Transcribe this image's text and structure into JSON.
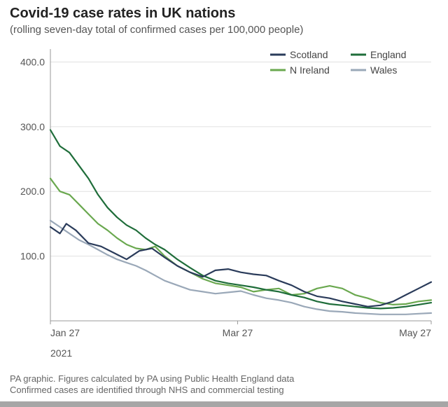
{
  "title": "Covid-19 case rates in UK nations",
  "subtitle": "(rolling seven-day total of confirmed cases per 100,000 people)",
  "year_label": "2021",
  "footnote_line1": "PA graphic. Figures calculated by PA using Public Health England data",
  "footnote_line2": "Confirmed cases are identified through NHS and commercial testing",
  "chart": {
    "type": "line",
    "background_color": "#ffffff",
    "plot_border_color": "#bfbfbf",
    "grid_color": "#e0e0e0",
    "axis_line_color": "#999999",
    "footer_border_color": "#a6a6a6",
    "ylim": [
      0,
      420
    ],
    "yticks": [
      100.0,
      200.0,
      300.0,
      400.0
    ],
    "ytick_labels": [
      "100.0",
      "200.0",
      "300.0",
      "400.0"
    ],
    "x_range_days": 120,
    "xticks": [
      {
        "day": 0,
        "label": "Jan 27"
      },
      {
        "day": 59,
        "label": "Mar 27"
      },
      {
        "day": 120,
        "label": "May 27"
      }
    ],
    "legend": {
      "position": "top-right",
      "items": [
        {
          "key": "scotland",
          "label": "Scotland"
        },
        {
          "key": "england",
          "label": "England"
        },
        {
          "key": "nireland",
          "label": "N Ireland"
        },
        {
          "key": "wales",
          "label": "Wales"
        }
      ]
    },
    "series": {
      "scotland": {
        "label": "Scotland",
        "color": "#2a3b5a",
        "line_width": 2.2,
        "data": [
          [
            0,
            145
          ],
          [
            3,
            135
          ],
          [
            5,
            150
          ],
          [
            8,
            140
          ],
          [
            12,
            120
          ],
          [
            16,
            115
          ],
          [
            20,
            105
          ],
          [
            24,
            95
          ],
          [
            28,
            108
          ],
          [
            32,
            112
          ],
          [
            36,
            98
          ],
          [
            40,
            85
          ],
          [
            44,
            75
          ],
          [
            48,
            68
          ],
          [
            52,
            78
          ],
          [
            56,
            80
          ],
          [
            60,
            75
          ],
          [
            64,
            72
          ],
          [
            68,
            70
          ],
          [
            72,
            62
          ],
          [
            76,
            55
          ],
          [
            80,
            45
          ],
          [
            84,
            38
          ],
          [
            88,
            35
          ],
          [
            92,
            30
          ],
          [
            96,
            26
          ],
          [
            100,
            22
          ],
          [
            104,
            24
          ],
          [
            108,
            30
          ],
          [
            112,
            40
          ],
          [
            116,
            50
          ],
          [
            120,
            60
          ]
        ]
      },
      "england": {
        "label": "England",
        "color": "#1f6d3a",
        "line_width": 2.2,
        "data": [
          [
            0,
            295
          ],
          [
            3,
            270
          ],
          [
            6,
            260
          ],
          [
            9,
            240
          ],
          [
            12,
            220
          ],
          [
            15,
            195
          ],
          [
            18,
            175
          ],
          [
            21,
            160
          ],
          [
            24,
            148
          ],
          [
            27,
            140
          ],
          [
            30,
            128
          ],
          [
            33,
            118
          ],
          [
            36,
            110
          ],
          [
            40,
            95
          ],
          [
            44,
            82
          ],
          [
            48,
            70
          ],
          [
            52,
            62
          ],
          [
            56,
            58
          ],
          [
            60,
            55
          ],
          [
            64,
            52
          ],
          [
            68,
            48
          ],
          [
            72,
            45
          ],
          [
            76,
            40
          ],
          [
            80,
            36
          ],
          [
            84,
            30
          ],
          [
            88,
            26
          ],
          [
            92,
            24
          ],
          [
            96,
            22
          ],
          [
            100,
            20
          ],
          [
            104,
            19
          ],
          [
            108,
            20
          ],
          [
            112,
            22
          ],
          [
            116,
            25
          ],
          [
            120,
            28
          ]
        ]
      },
      "nireland": {
        "label": "N Ireland",
        "color": "#6aa84f",
        "line_width": 2.2,
        "data": [
          [
            0,
            220
          ],
          [
            3,
            200
          ],
          [
            6,
            195
          ],
          [
            9,
            180
          ],
          [
            12,
            165
          ],
          [
            15,
            150
          ],
          [
            18,
            140
          ],
          [
            21,
            128
          ],
          [
            24,
            118
          ],
          [
            27,
            112
          ],
          [
            30,
            110
          ],
          [
            33,
            115
          ],
          [
            36,
            100
          ],
          [
            40,
            85
          ],
          [
            44,
            75
          ],
          [
            48,
            65
          ],
          [
            52,
            58
          ],
          [
            56,
            55
          ],
          [
            60,
            52
          ],
          [
            64,
            45
          ],
          [
            68,
            48
          ],
          [
            72,
            50
          ],
          [
            76,
            40
          ],
          [
            80,
            42
          ],
          [
            84,
            50
          ],
          [
            88,
            54
          ],
          [
            92,
            50
          ],
          [
            96,
            40
          ],
          [
            100,
            35
          ],
          [
            104,
            28
          ],
          [
            108,
            25
          ],
          [
            112,
            26
          ],
          [
            116,
            30
          ],
          [
            120,
            32
          ]
        ]
      },
      "wales": {
        "label": "Wales",
        "color": "#9aa8b8",
        "line_width": 2.2,
        "data": [
          [
            0,
            155
          ],
          [
            3,
            145
          ],
          [
            6,
            135
          ],
          [
            9,
            125
          ],
          [
            12,
            118
          ],
          [
            15,
            110
          ],
          [
            18,
            102
          ],
          [
            21,
            95
          ],
          [
            24,
            90
          ],
          [
            27,
            85
          ],
          [
            30,
            78
          ],
          [
            33,
            70
          ],
          [
            36,
            62
          ],
          [
            40,
            55
          ],
          [
            44,
            48
          ],
          [
            48,
            45
          ],
          [
            52,
            42
          ],
          [
            56,
            44
          ],
          [
            60,
            46
          ],
          [
            64,
            40
          ],
          [
            68,
            35
          ],
          [
            72,
            32
          ],
          [
            76,
            28
          ],
          [
            80,
            22
          ],
          [
            84,
            18
          ],
          [
            88,
            15
          ],
          [
            92,
            14
          ],
          [
            96,
            12
          ],
          [
            100,
            11
          ],
          [
            104,
            10
          ],
          [
            108,
            10
          ],
          [
            112,
            10
          ],
          [
            116,
            11
          ],
          [
            120,
            12
          ]
        ]
      }
    }
  }
}
